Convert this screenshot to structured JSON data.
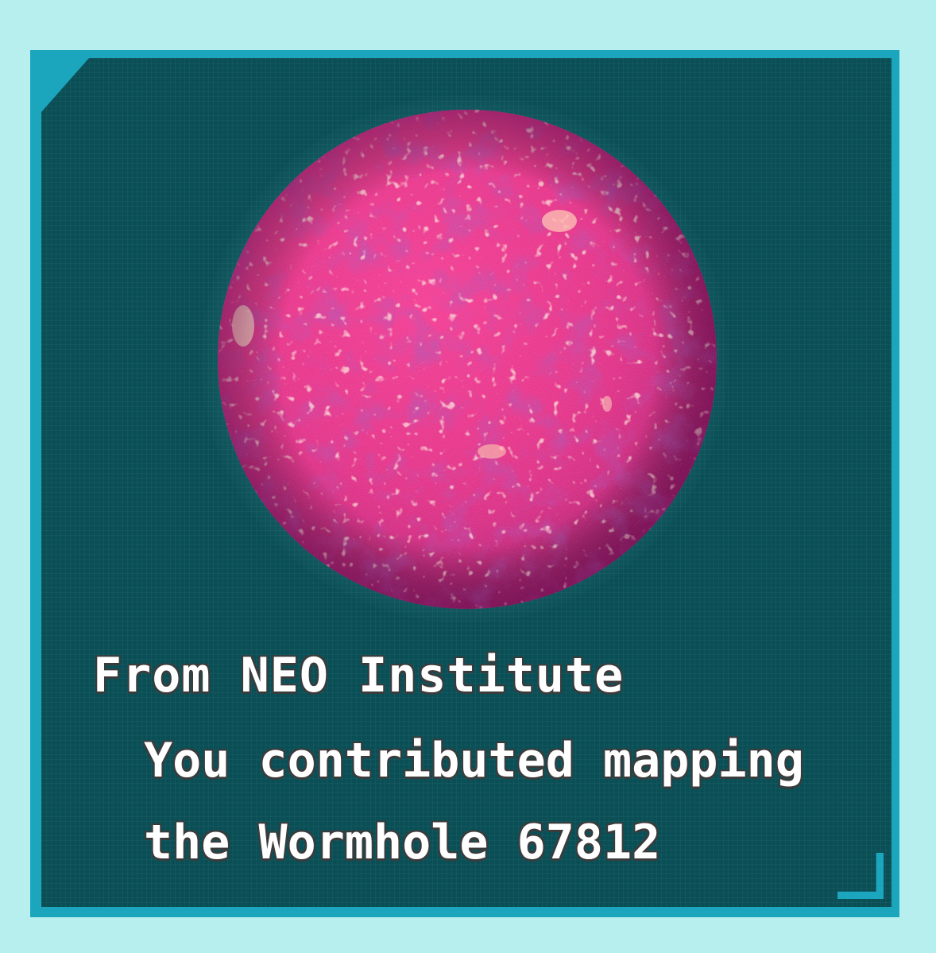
{
  "card": {
    "title": "From NEO Institute",
    "message_line1": "You contributed mapping",
    "message_line2": "the Wormhole 67812"
  },
  "colors": {
    "background": "#b6efee",
    "frame": "#1ca6bd",
    "panel": "#0a4f56",
    "planet": "#e52b83",
    "text": "#ffffff",
    "text_outline": "#3b3b3b"
  },
  "icons": {
    "planet": "magenta-star-icon"
  }
}
